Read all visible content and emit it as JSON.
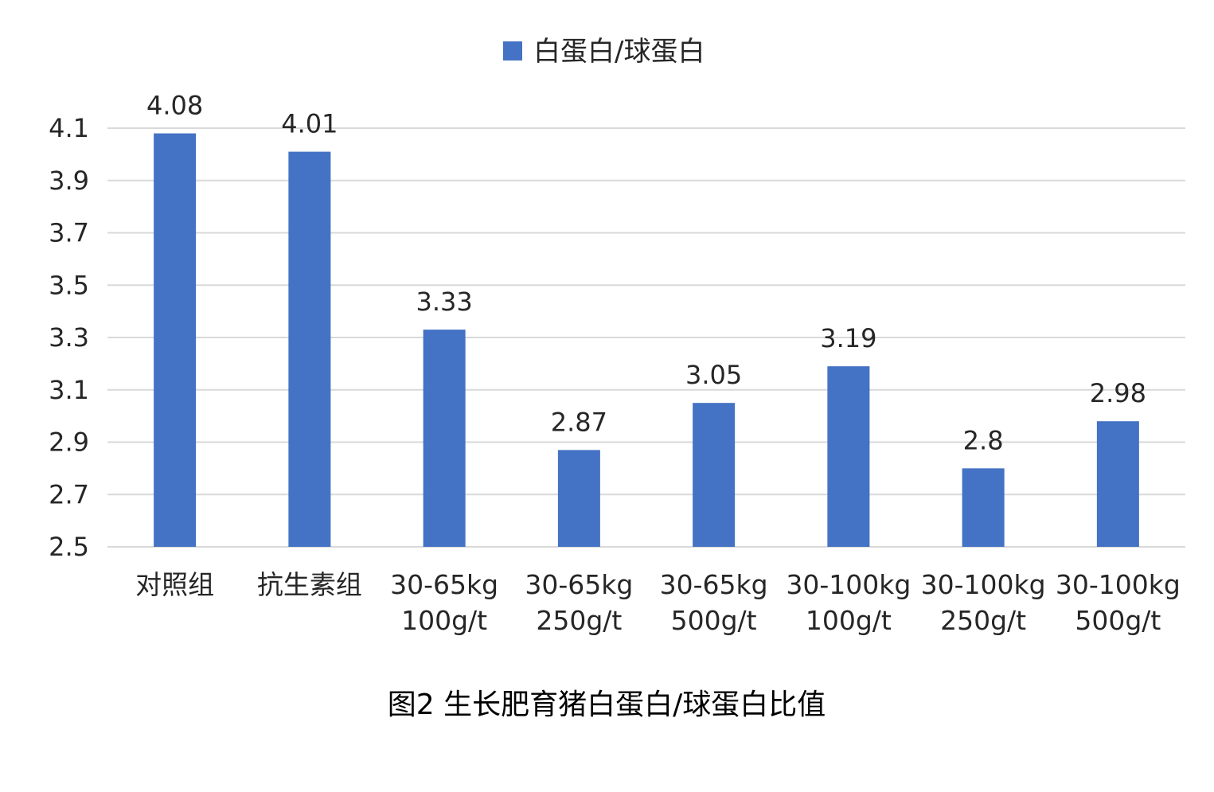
{
  "chart_data": {
    "type": "bar",
    "title": "",
    "xlabel": "",
    "ylabel": "",
    "ylim": [
      2.5,
      4.1
    ],
    "yticks": [
      2.5,
      2.7,
      2.9,
      3.1,
      3.3,
      3.5,
      3.7,
      3.9,
      4.1
    ],
    "ytick_labels": [
      "2.5",
      "2.7",
      "2.9",
      "3.1",
      "3.3",
      "3.5",
      "3.7",
      "3.9",
      "4.1"
    ],
    "categories": [
      [
        "对照组"
      ],
      [
        "抗生素组"
      ],
      [
        "30-65kg",
        "100g/t"
      ],
      [
        "30-65kg",
        "250g/t"
      ],
      [
        "30-65kg",
        "500g/t"
      ],
      [
        "30-100kg",
        "100g/t"
      ],
      [
        "30-100kg",
        "250g/t"
      ],
      [
        "30-100kg",
        "500g/t"
      ]
    ],
    "series": [
      {
        "name": "白蛋白/球蛋白",
        "values": [
          4.08,
          4.01,
          3.33,
          2.87,
          3.05,
          3.19,
          2.8,
          2.98
        ],
        "labels": [
          "4.08",
          "4.01",
          "3.33",
          "2.87",
          "3.05",
          "3.19",
          "2.8",
          "2.98"
        ],
        "color": "#4472C4"
      }
    ],
    "grid": true,
    "gridColor": "#D9D9D9",
    "legend": "top-center"
  },
  "caption": "图2 生长肥育猪白蛋白/球蛋白比值"
}
